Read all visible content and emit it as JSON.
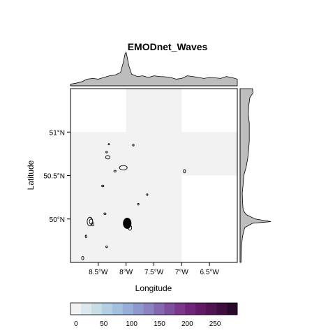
{
  "chart_data": {
    "type": "heatmap",
    "title": "EMODnet_Waves",
    "xlabel": "Longitude",
    "ylabel": "Latitude",
    "xlim": [
      -9.0,
      -6.0
    ],
    "ylim": [
      49.5,
      51.5
    ],
    "x_ticks": [
      {
        "value": -8.5,
        "label": "8.5°W"
      },
      {
        "value": -8.0,
        "label": "8°W"
      },
      {
        "value": -7.5,
        "label": "7.5°W"
      },
      {
        "value": -7.0,
        "label": "7°W"
      },
      {
        "value": -6.5,
        "label": "6.5°W"
      }
    ],
    "y_ticks": [
      {
        "value": 50.0,
        "label": "50°N"
      },
      {
        "value": 50.5,
        "label": "50.5°N"
      },
      {
        "value": 51.0,
        "label": "51°N"
      }
    ],
    "cells": [
      {
        "lon": [
          -9.0,
          -8.0
        ],
        "lat": [
          49.5,
          51.0
        ],
        "value": 5
      },
      {
        "lon": [
          -8.0,
          -7.0
        ],
        "lat": [
          49.5,
          51.5
        ],
        "value": 5
      },
      {
        "lon": [
          -7.0,
          -6.0
        ],
        "lat": [
          50.5,
          51.0
        ],
        "value": 5
      }
    ],
    "colorbar": {
      "min": -10,
      "max": 290,
      "ticks": [
        0,
        50,
        100,
        150,
        200,
        250
      ],
      "colors": [
        "#f2f2f2",
        "#dde8ee",
        "#c9dde6",
        "#b4cee3",
        "#a4c0df",
        "#97aed8",
        "#8e98cd",
        "#8a82c1",
        "#8667b1",
        "#7f4f9f",
        "#79388c",
        "#71257a",
        "#621a66",
        "#521353",
        "#3f0e40",
        "#2a0a2b"
      ]
    },
    "marginal_top": {
      "x": [
        -9.0,
        -8.9,
        -8.8,
        -8.7,
        -8.6,
        -8.5,
        -8.4,
        -8.3,
        -8.2,
        -8.1,
        -8.05,
        -8.02,
        -8.0,
        -7.98,
        -7.95,
        -7.9,
        -7.8,
        -7.7,
        -7.6,
        -7.5,
        -7.4,
        -7.3,
        -7.2,
        -7.1,
        -7.0,
        -6.9,
        -6.8,
        -6.7,
        -6.6,
        -6.5,
        -6.4,
        -6.3,
        -6.2,
        -6.1,
        -6.0
      ],
      "density": [
        0.05,
        0.08,
        0.12,
        0.2,
        0.22,
        0.2,
        0.25,
        0.3,
        0.32,
        0.4,
        0.7,
        0.95,
        1.0,
        0.85,
        0.6,
        0.35,
        0.28,
        0.3,
        0.25,
        0.3,
        0.28,
        0.27,
        0.25,
        0.2,
        0.22,
        0.3,
        0.28,
        0.25,
        0.22,
        0.25,
        0.24,
        0.22,
        0.28,
        0.25,
        0.2
      ]
    },
    "marginal_right": {
      "y": [
        51.5,
        51.45,
        51.4,
        51.35,
        51.3,
        51.2,
        51.1,
        51.0,
        50.9,
        50.8,
        50.7,
        50.6,
        50.5,
        50.4,
        50.3,
        50.2,
        50.1,
        50.05,
        50.0,
        49.97,
        49.95,
        49.9,
        49.8,
        49.7,
        49.6,
        49.5
      ],
      "density": [
        0.4,
        0.42,
        0.32,
        0.3,
        0.28,
        0.27,
        0.3,
        0.3,
        0.3,
        0.28,
        0.25,
        0.2,
        0.12,
        0.1,
        0.07,
        0.08,
        0.1,
        0.2,
        0.5,
        1.0,
        0.4,
        0.15,
        0.08,
        0.05,
        0.04,
        0.03
      ]
    },
    "contours": [
      {
        "center": [
          -7.98,
          49.95
        ],
        "radius": [
          0.07,
          0.06
        ],
        "filled": true
      },
      {
        "center": [
          -7.93,
          49.9
        ],
        "radius": [
          0.03,
          0.03
        ],
        "filled": false
      },
      {
        "center": [
          -8.65,
          49.97
        ],
        "radius": [
          0.05,
          0.05
        ],
        "filled": false
      },
      {
        "center": [
          -8.63,
          49.97
        ],
        "radius": [
          0.03,
          0.03
        ],
        "filled": false
      },
      {
        "center": [
          -8.6,
          49.94
        ],
        "radius": [
          0.02,
          0.02
        ],
        "filled": false
      },
      {
        "center": [
          -8.72,
          49.8
        ],
        "radius": [
          0.015,
          0.015
        ],
        "filled": false
      },
      {
        "center": [
          -8.38,
          50.06
        ],
        "radius": [
          0.02,
          0.01
        ],
        "filled": false
      },
      {
        "center": [
          -8.05,
          50.59
        ],
        "radius": [
          0.07,
          0.025
        ],
        "filled": false
      },
      {
        "center": [
          -8.2,
          50.55
        ],
        "radius": [
          0.02,
          0.01
        ],
        "filled": false
      },
      {
        "center": [
          -8.42,
          50.38
        ],
        "radius": [
          0.02,
          0.01
        ],
        "filled": false
      },
      {
        "center": [
          -8.33,
          50.71
        ],
        "radius": [
          0.04,
          0.02
        ],
        "filled": false
      },
      {
        "center": [
          -8.35,
          50.77
        ],
        "radius": [
          0.015,
          0.01
        ],
        "filled": false
      },
      {
        "center": [
          -7.87,
          50.85
        ],
        "radius": [
          0.015,
          0.01
        ],
        "filled": false
      },
      {
        "center": [
          -8.31,
          50.86
        ],
        "radius": [
          0.008,
          0.008
        ],
        "filled": false
      },
      {
        "center": [
          -7.62,
          50.28
        ],
        "radius": [
          0.01,
          0.01
        ],
        "filled": false
      },
      {
        "center": [
          -7.78,
          50.17
        ],
        "radius": [
          0.01,
          0.01
        ],
        "filled": false
      },
      {
        "center": [
          -8.78,
          49.55
        ],
        "radius": [
          0.02,
          0.02
        ],
        "filled": false
      },
      {
        "center": [
          -8.35,
          49.68
        ],
        "radius": [
          0.015,
          0.01
        ],
        "filled": false
      },
      {
        "center": [
          -6.95,
          50.55
        ],
        "radius": [
          0.02,
          0.02
        ],
        "filled": false
      }
    ]
  }
}
